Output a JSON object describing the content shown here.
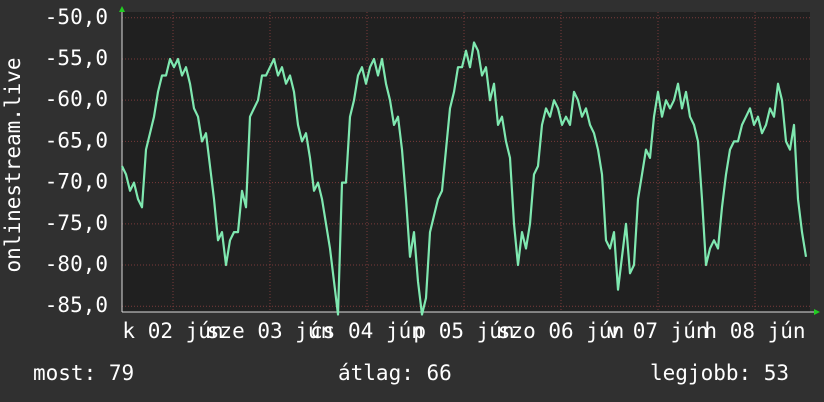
{
  "chart_data": {
    "type": "line",
    "ylabel": "onlinestream.live",
    "ylim": [
      -85.7,
      -49.3
    ],
    "yticks": [
      {
        "value": -50,
        "label": "-50,0"
      },
      {
        "value": -55,
        "label": "-55,0"
      },
      {
        "value": -60,
        "label": "-60,0"
      },
      {
        "value": -65,
        "label": "-65,0"
      },
      {
        "value": -70,
        "label": "-70,0"
      },
      {
        "value": -75,
        "label": "-75,0"
      },
      {
        "value": -80,
        "label": "-80,0"
      },
      {
        "value": -85,
        "label": "-85,0"
      }
    ],
    "xlim": [
      0,
      172
    ],
    "xticks": [
      {
        "value": 12.75,
        "label": "k 02 jún"
      },
      {
        "value": 37,
        "label": "sze 03 jún"
      },
      {
        "value": 61.25,
        "label": "cs 04 jún"
      },
      {
        "value": 85.5,
        "label": "p 05 jún"
      },
      {
        "value": 109.75,
        "label": "szo 06 jún"
      },
      {
        "value": 134,
        "label": "v 07 jún"
      },
      {
        "value": 158.25,
        "label": "h 08 jún"
      }
    ],
    "grid": true,
    "color": "#7fe8b0",
    "values": [
      -68,
      -69,
      -71,
      -70,
      -72,
      -73,
      -66,
      -64,
      -62,
      -59,
      -57,
      -57,
      -55,
      -56,
      -55,
      -57,
      -56,
      -58,
      -61,
      -62,
      -65,
      -64,
      -68,
      -72,
      -77,
      -76,
      -80,
      -77,
      -76,
      -76,
      -71,
      -73,
      -62,
      -61,
      -60,
      -57,
      -57,
      -56,
      -55,
      -57,
      -56,
      -58,
      -57,
      -59,
      -63,
      -65,
      -64,
      -67,
      -71,
      -70,
      -72,
      -75,
      -78,
      -82,
      -86,
      -70,
      -70,
      -62,
      -60,
      -57,
      -56,
      -58,
      -56,
      -55,
      -57,
      -55,
      -58,
      -60,
      -63,
      -62,
      -66,
      -72,
      -79,
      -76,
      -82,
      -86,
      -84,
      -76,
      -74,
      -72,
      -71,
      -66,
      -61,
      -59,
      -56,
      -56,
      -54,
      -56,
      -53,
      -54,
      -57,
      -56,
      -60,
      -58,
      -63,
      -62,
      -65,
      -67,
      -75,
      -80,
      -76,
      -78,
      -75,
      -69,
      -68,
      -63,
      -61,
      -62,
      -60,
      -61,
      -63,
      -62,
      -63,
      -59,
      -60,
      -62,
      -61,
      -63,
      -64,
      -66,
      -69,
      -77,
      -78,
      -76,
      -83,
      -79,
      -75,
      -81,
      -80,
      -72,
      -69,
      -66,
      -67,
      -62,
      -59,
      -62,
      -60,
      -61,
      -60,
      -58,
      -61,
      -59,
      -62,
      -63,
      -65,
      -72,
      -80,
      -78,
      -77,
      -78,
      -73,
      -69,
      -66,
      -65,
      -65,
      -63,
      -62,
      -61,
      -63,
      -62,
      -64,
      -63,
      -61,
      -62,
      -58,
      -60,
      -65,
      -66,
      -63,
      -72,
      -76,
      -79
    ],
    "legend": [
      "most: 79",
      "átlag: 66",
      "legjobb: 53"
    ]
  }
}
